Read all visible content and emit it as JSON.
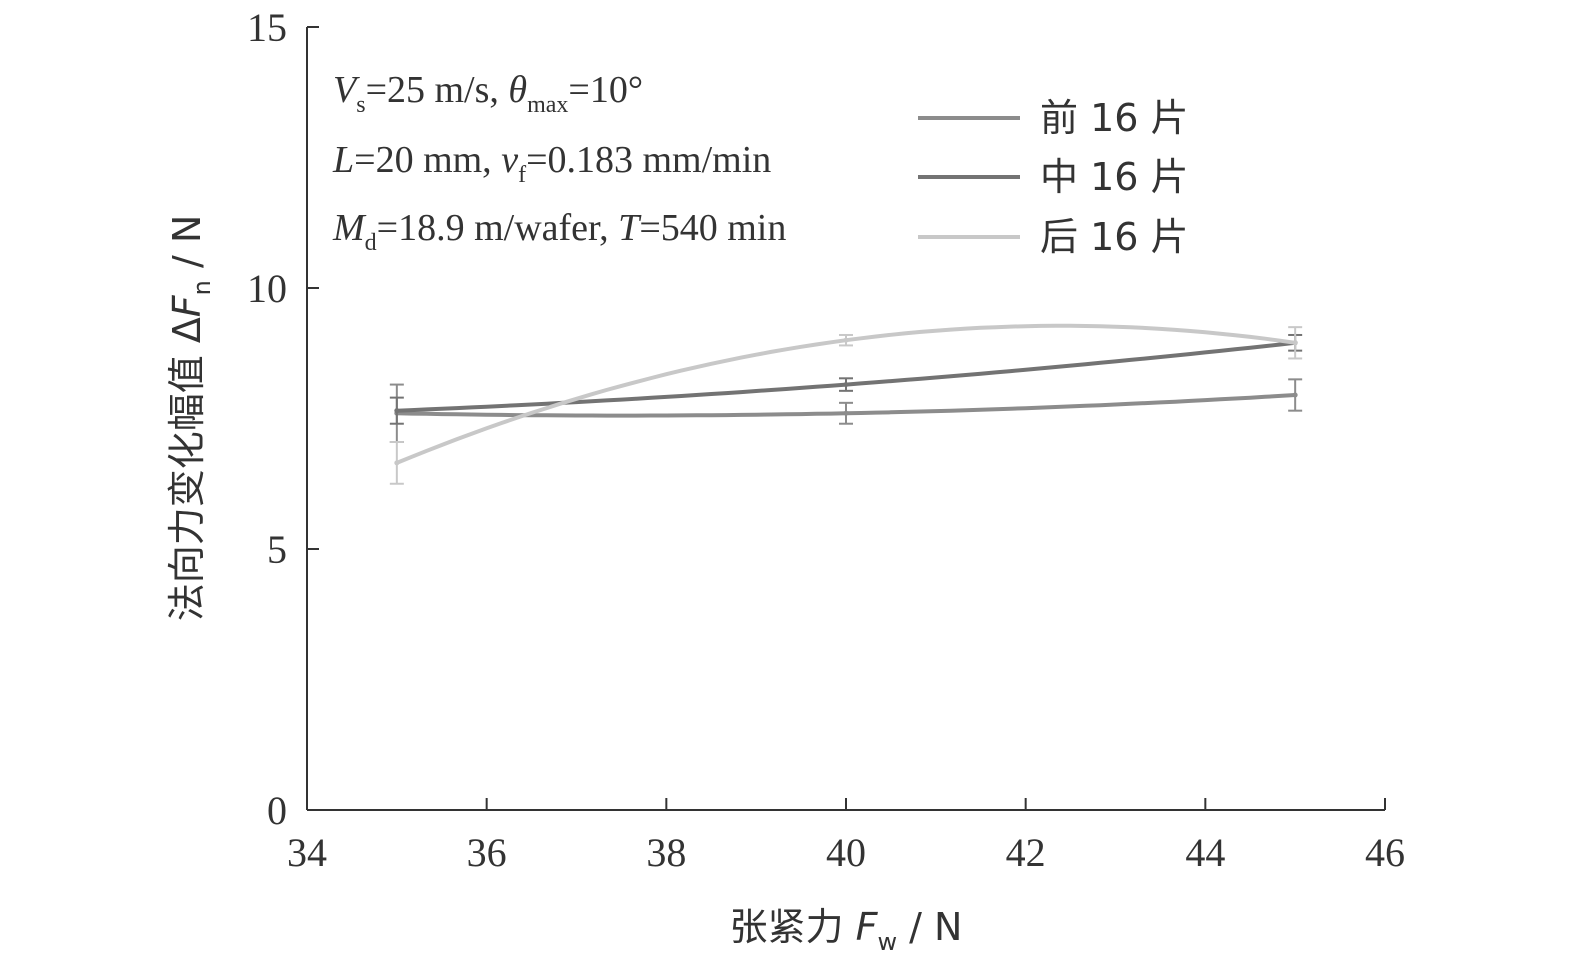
{
  "chart_data": {
    "type": "line",
    "xlabel": {
      "prefix": "张紧力 ",
      "var": "F",
      "sub": "w",
      "unit": " / N"
    },
    "ylabel": {
      "prefix": "法向力变化幅值 Δ",
      "var": "F",
      "sub": "n",
      "unit": " / N"
    },
    "xlim": [
      34,
      46
    ],
    "ylim": [
      0,
      15
    ],
    "xticks": [
      "34",
      "36",
      "38",
      "40",
      "42",
      "44",
      "46"
    ],
    "yticks": [
      "0",
      "5",
      "10",
      "15"
    ],
    "annotations": [
      [
        {
          "t": "V",
          "i": true
        },
        {
          "t": "s",
          "sub": true
        },
        {
          "t": "=25 m/s, "
        },
        {
          "t": "θ",
          "i": true
        },
        {
          "t": "max",
          "sub": true
        },
        {
          "t": "=10°"
        }
      ],
      [
        {
          "t": "L",
          "i": true
        },
        {
          "t": "=20 mm, "
        },
        {
          "t": "v",
          "i": true
        },
        {
          "t": "f",
          "sub": true
        },
        {
          "t": "=0.183 mm/min"
        }
      ],
      [
        {
          "t": "M",
          "i": true
        },
        {
          "t": "d",
          "sub": true
        },
        {
          "t": "=18.9 m/wafer, "
        },
        {
          "t": "T",
          "i": true
        },
        {
          "t": "=540 min"
        }
      ]
    ],
    "series": [
      {
        "name": "前 16 片",
        "color": "#8c8c8c",
        "x": [
          35,
          40,
          45
        ],
        "y": [
          7.6,
          7.6,
          7.95
        ],
        "err": [
          0.55,
          0.2,
          0.3
        ]
      },
      {
        "name": "中 16 片",
        "color": "#737373",
        "x": [
          35,
          40,
          45
        ],
        "y": [
          7.65,
          8.15,
          8.95
        ],
        "err": [
          0.25,
          0.12,
          0.15
        ]
      },
      {
        "name": "后 16 片",
        "color": "#c8c8c8",
        "x": [
          35,
          40,
          45
        ],
        "y": [
          6.65,
          9.0,
          8.95
        ],
        "err": [
          0.4,
          0.1,
          0.3
        ]
      }
    ]
  }
}
